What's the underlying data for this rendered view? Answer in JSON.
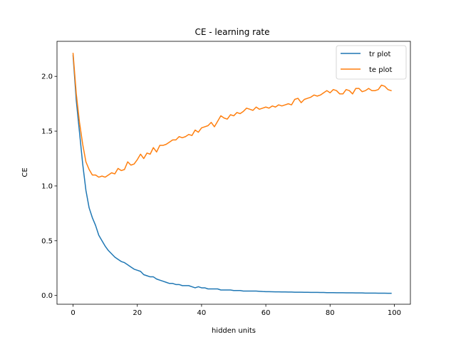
{
  "chart_data": {
    "type": "line",
    "title": "CE - learning rate",
    "xlabel": "hidden units",
    "ylabel": "CE",
    "xlim": [
      -5,
      105
    ],
    "ylim": [
      -0.08,
      2.32
    ],
    "xticks": [
      0,
      20,
      40,
      60,
      80,
      100
    ],
    "yticks": [
      0.0,
      0.5,
      1.0,
      1.5,
      2.0
    ],
    "xtick_labels": [
      "0",
      "20",
      "40",
      "60",
      "80",
      "100"
    ],
    "ytick_labels": [
      "0.0",
      "0.5",
      "1.0",
      "1.5",
      "2.0"
    ],
    "grid": false,
    "legend_position": "top-right",
    "series": [
      {
        "name": "tr plot",
        "color": "#1f77b4",
        "x": [
          0,
          1,
          2,
          3,
          4,
          5,
          6,
          7,
          8,
          9,
          10,
          11,
          12,
          13,
          14,
          15,
          16,
          17,
          18,
          19,
          20,
          21,
          22,
          23,
          24,
          25,
          26,
          27,
          28,
          29,
          30,
          31,
          32,
          33,
          34,
          35,
          36,
          37,
          38,
          39,
          40,
          41,
          42,
          43,
          44,
          45,
          46,
          47,
          48,
          49,
          50,
          51,
          52,
          53,
          54,
          55,
          56,
          57,
          58,
          59,
          60,
          61,
          62,
          63,
          64,
          65,
          66,
          67,
          68,
          69,
          70,
          71,
          72,
          73,
          74,
          75,
          76,
          77,
          78,
          79,
          80,
          81,
          82,
          83,
          84,
          85,
          86,
          87,
          88,
          89,
          90,
          91,
          92,
          93,
          94,
          95,
          96,
          97,
          98,
          99
        ],
        "values": [
          2.19,
          1.78,
          1.49,
          1.2,
          0.96,
          0.8,
          0.71,
          0.64,
          0.55,
          0.5,
          0.45,
          0.41,
          0.38,
          0.35,
          0.33,
          0.31,
          0.3,
          0.28,
          0.26,
          0.24,
          0.23,
          0.22,
          0.19,
          0.18,
          0.17,
          0.17,
          0.15,
          0.14,
          0.13,
          0.12,
          0.11,
          0.11,
          0.1,
          0.1,
          0.09,
          0.09,
          0.09,
          0.08,
          0.07,
          0.08,
          0.07,
          0.07,
          0.06,
          0.06,
          0.06,
          0.06,
          0.05,
          0.05,
          0.05,
          0.05,
          0.045,
          0.045,
          0.045,
          0.04,
          0.04,
          0.04,
          0.04,
          0.04,
          0.038,
          0.036,
          0.035,
          0.035,
          0.034,
          0.033,
          0.033,
          0.032,
          0.032,
          0.031,
          0.031,
          0.03,
          0.03,
          0.03,
          0.029,
          0.029,
          0.028,
          0.028,
          0.028,
          0.027,
          0.027,
          0.026,
          0.026,
          0.026,
          0.025,
          0.025,
          0.025,
          0.024,
          0.024,
          0.024,
          0.023,
          0.023,
          0.023,
          0.022,
          0.022,
          0.022,
          0.022,
          0.021,
          0.021,
          0.021,
          0.02,
          0.02
        ]
      },
      {
        "name": "te plot",
        "color": "#ff7f0e",
        "x": [
          0,
          1,
          2,
          3,
          4,
          5,
          6,
          7,
          8,
          9,
          10,
          11,
          12,
          13,
          14,
          15,
          16,
          17,
          18,
          19,
          20,
          21,
          22,
          23,
          24,
          25,
          26,
          27,
          28,
          29,
          30,
          31,
          32,
          33,
          34,
          35,
          36,
          37,
          38,
          39,
          40,
          41,
          42,
          43,
          44,
          45,
          46,
          47,
          48,
          49,
          50,
          51,
          52,
          53,
          54,
          55,
          56,
          57,
          58,
          59,
          60,
          61,
          62,
          63,
          64,
          65,
          66,
          67,
          68,
          69,
          70,
          71,
          72,
          73,
          74,
          75,
          76,
          77,
          78,
          79,
          80,
          81,
          82,
          83,
          84,
          85,
          86,
          87,
          88,
          89,
          90,
          91,
          92,
          93,
          94,
          95,
          96,
          97,
          98,
          99
        ],
        "values": [
          2.21,
          1.84,
          1.58,
          1.38,
          1.22,
          1.15,
          1.1,
          1.1,
          1.08,
          1.09,
          1.08,
          1.1,
          1.12,
          1.11,
          1.16,
          1.14,
          1.15,
          1.22,
          1.19,
          1.2,
          1.24,
          1.29,
          1.25,
          1.3,
          1.29,
          1.35,
          1.31,
          1.37,
          1.37,
          1.38,
          1.4,
          1.42,
          1.42,
          1.45,
          1.44,
          1.45,
          1.47,
          1.46,
          1.51,
          1.49,
          1.53,
          1.54,
          1.55,
          1.58,
          1.54,
          1.59,
          1.64,
          1.62,
          1.61,
          1.65,
          1.64,
          1.67,
          1.66,
          1.68,
          1.71,
          1.7,
          1.69,
          1.72,
          1.7,
          1.71,
          1.72,
          1.71,
          1.73,
          1.72,
          1.74,
          1.73,
          1.74,
          1.75,
          1.74,
          1.79,
          1.8,
          1.76,
          1.79,
          1.8,
          1.81,
          1.83,
          1.82,
          1.83,
          1.85,
          1.87,
          1.85,
          1.88,
          1.87,
          1.84,
          1.84,
          1.88,
          1.87,
          1.84,
          1.89,
          1.89,
          1.86,
          1.87,
          1.89,
          1.87,
          1.87,
          1.88,
          1.92,
          1.91,
          1.88,
          1.87
        ]
      }
    ]
  }
}
